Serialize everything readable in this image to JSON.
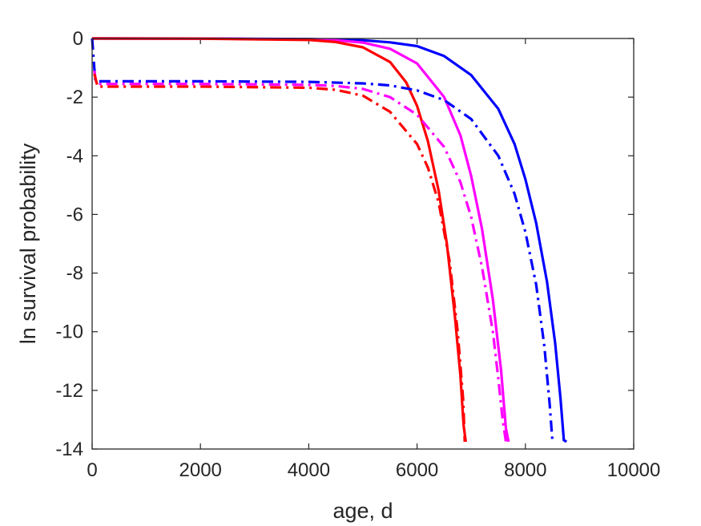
{
  "chart_data": {
    "type": "line",
    "title": "",
    "xlabel": "age, d",
    "ylabel": "ln survival probability",
    "xlim": [
      0,
      10000
    ],
    "ylim": [
      -14,
      0
    ],
    "xticks": [
      0,
      2000,
      4000,
      6000,
      8000,
      10000
    ],
    "yticks": [
      0,
      -2,
      -4,
      -6,
      -8,
      -10,
      -12,
      -14
    ],
    "xtick_labels": [
      "0",
      "2000",
      "4000",
      "6000",
      "8000",
      "10000"
    ],
    "ytick_labels": [
      "0",
      "-2",
      "-4",
      "-6",
      "-8",
      "-10",
      "-12",
      "-14"
    ],
    "grid": false,
    "legend": "none",
    "series": [
      {
        "color": "#0000FF",
        "style": "solid",
        "points": [
          [
            0,
            0
          ],
          [
            2000,
            -0.003
          ],
          [
            4000,
            -0.02
          ],
          [
            5000,
            -0.06
          ],
          [
            5500,
            -0.13
          ],
          [
            6000,
            -0.26
          ],
          [
            6500,
            -0.6
          ],
          [
            7000,
            -1.25
          ],
          [
            7500,
            -2.4
          ],
          [
            7800,
            -3.6
          ],
          [
            8000,
            -4.8
          ],
          [
            8200,
            -6.3
          ],
          [
            8400,
            -8.3
          ],
          [
            8550,
            -10.4
          ],
          [
            8650,
            -12.3
          ],
          [
            8710,
            -13.7
          ],
          [
            8760,
            -13.75
          ]
        ]
      },
      {
        "color": "#FF00FF",
        "style": "solid",
        "points": [
          [
            0,
            0
          ],
          [
            2000,
            -0.003
          ],
          [
            4000,
            -0.03
          ],
          [
            4500,
            -0.06
          ],
          [
            5000,
            -0.14
          ],
          [
            5500,
            -0.35
          ],
          [
            6000,
            -0.85
          ],
          [
            6500,
            -2.0
          ],
          [
            6800,
            -3.3
          ],
          [
            7000,
            -4.7
          ],
          [
            7200,
            -6.5
          ],
          [
            7400,
            -8.9
          ],
          [
            7550,
            -11.3
          ],
          [
            7640,
            -13.3
          ],
          [
            7690,
            -13.75
          ]
        ]
      },
      {
        "color": "#FF0000",
        "style": "solid",
        "points": [
          [
            0,
            0
          ],
          [
            2000,
            -0.005
          ],
          [
            4000,
            -0.05
          ],
          [
            4500,
            -0.12
          ],
          [
            5000,
            -0.3
          ],
          [
            5500,
            -0.8
          ],
          [
            5800,
            -1.5
          ],
          [
            6000,
            -2.3
          ],
          [
            6200,
            -3.5
          ],
          [
            6400,
            -5.2
          ],
          [
            6550,
            -7.0
          ],
          [
            6700,
            -9.5
          ],
          [
            6800,
            -11.5
          ],
          [
            6860,
            -13.2
          ],
          [
            6900,
            -13.75
          ]
        ]
      },
      {
        "color": "#0000FF",
        "style": "dashdot",
        "points": [
          [
            0,
            0
          ],
          [
            40,
            -1.0
          ],
          [
            60,
            -1.45
          ],
          [
            100,
            -1.46
          ],
          [
            2000,
            -1.46
          ],
          [
            4000,
            -1.48
          ],
          [
            5000,
            -1.53
          ],
          [
            5500,
            -1.6
          ],
          [
            6000,
            -1.77
          ],
          [
            6500,
            -2.1
          ],
          [
            7000,
            -2.75
          ],
          [
            7500,
            -4.0
          ],
          [
            7800,
            -5.3
          ],
          [
            8000,
            -6.6
          ],
          [
            8200,
            -8.4
          ],
          [
            8350,
            -10.5
          ],
          [
            8450,
            -12.5
          ],
          [
            8500,
            -13.75
          ]
        ]
      },
      {
        "color": "#FF00FF",
        "style": "dashdot",
        "points": [
          [
            40,
            -1.1
          ],
          [
            80,
            -1.55
          ],
          [
            2000,
            -1.55
          ],
          [
            4000,
            -1.58
          ],
          [
            4500,
            -1.62
          ],
          [
            5000,
            -1.72
          ],
          [
            5500,
            -2.0
          ],
          [
            6000,
            -2.6
          ],
          [
            6500,
            -3.7
          ],
          [
            6800,
            -4.9
          ],
          [
            7000,
            -6.1
          ],
          [
            7200,
            -7.8
          ],
          [
            7400,
            -10.0
          ],
          [
            7500,
            -11.6
          ],
          [
            7580,
            -13.0
          ],
          [
            7640,
            -13.75
          ]
        ]
      },
      {
        "color": "#FF0000",
        "style": "dashdot",
        "points": [
          [
            40,
            -1.2
          ],
          [
            100,
            -1.64
          ],
          [
            2000,
            -1.64
          ],
          [
            4000,
            -1.68
          ],
          [
            4500,
            -1.75
          ],
          [
            5000,
            -1.95
          ],
          [
            5500,
            -2.5
          ],
          [
            6000,
            -3.6
          ],
          [
            6200,
            -4.4
          ],
          [
            6400,
            -5.6
          ],
          [
            6600,
            -7.6
          ],
          [
            6750,
            -10.0
          ],
          [
            6850,
            -12.3
          ],
          [
            6880,
            -13.75
          ]
        ]
      }
    ]
  }
}
